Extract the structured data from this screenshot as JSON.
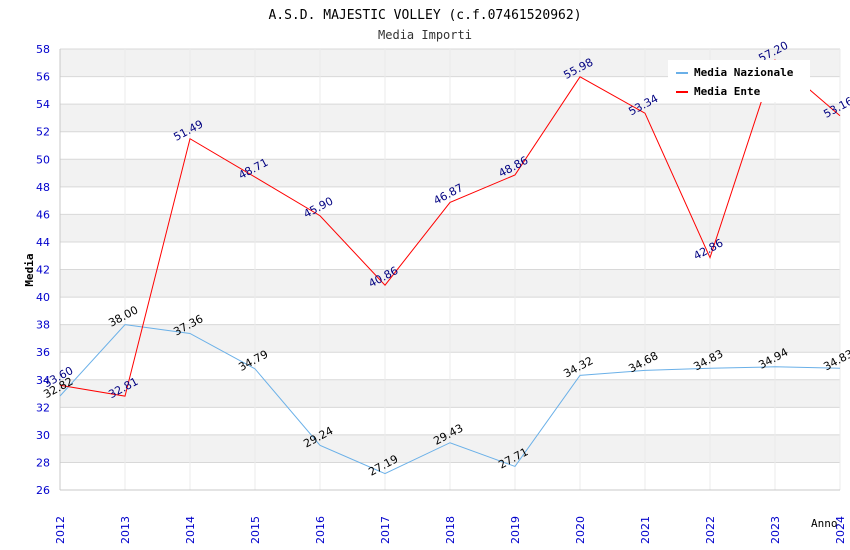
{
  "chart_data": {
    "type": "line",
    "title": "A.S.D. MAJESTIC VOLLEY (c.f.07461520962)",
    "subtitle": "Media Importi",
    "xlabel": "Anno",
    "ylabel": "Media",
    "ylim": [
      26,
      58
    ],
    "yticks": [
      "26",
      "28",
      "30",
      "32",
      "34",
      "36",
      "38",
      "40",
      "42",
      "44",
      "46",
      "48",
      "50",
      "52",
      "54",
      "56",
      "58"
    ],
    "categories": [
      "2012",
      "2013",
      "2014",
      "2015",
      "2016",
      "2017",
      "2018",
      "2019",
      "2020",
      "2021",
      "2022",
      "2023",
      "2024"
    ],
    "series": [
      {
        "name": "Media Nazionale",
        "color": "#6ab0e8",
        "label_color": "#000000",
        "values": [
          32.82,
          38.0,
          37.36,
          34.79,
          29.24,
          27.19,
          29.43,
          27.71,
          34.32,
          34.68,
          34.83,
          34.94,
          34.83
        ],
        "labels": [
          "32.82",
          "38.00",
          "37.36",
          "34.79",
          "29.24",
          "27.19",
          "29.43",
          "27.71",
          "34.32",
          "34.68",
          "34.83",
          "34.94",
          "34.83"
        ]
      },
      {
        "name": "Media Ente",
        "color": "#ff0000",
        "label_color": "#000080",
        "values": [
          33.6,
          32.81,
          51.49,
          48.71,
          45.9,
          40.86,
          46.87,
          48.86,
          55.98,
          53.34,
          42.86,
          57.2,
          53.16
        ],
        "labels": [
          "33.60",
          "32.81",
          "51.49",
          "48.71",
          "45.90",
          "40.86",
          "46.87",
          "48.86",
          "55.98",
          "53.34",
          "42.86",
          "57.20",
          "53.16"
        ]
      }
    ],
    "legend_position": "top-right",
    "grid": true
  }
}
